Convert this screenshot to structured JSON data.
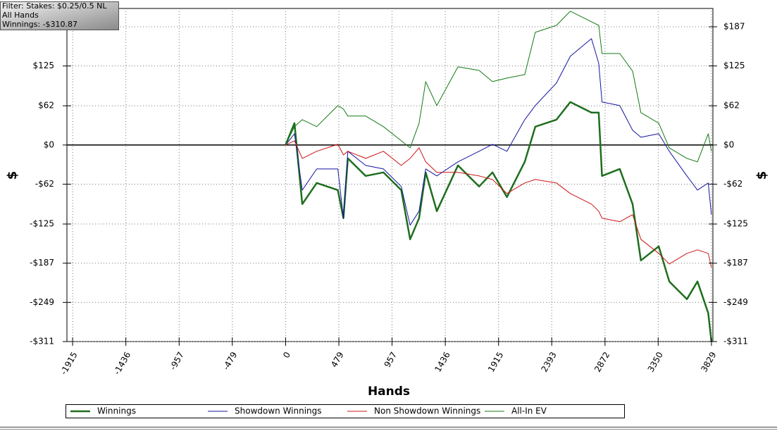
{
  "chart_data": {
    "type": "line",
    "info": [
      "Filter: Stakes: $0.25/0.5 NL",
      "All Hands",
      "Winnings: -$310.87"
    ],
    "xlabel": "Hands",
    "ylabel": "$",
    "y2label": "$",
    "grid": true,
    "legend": "bottom",
    "xlim": [
      -1966,
      3842
    ],
    "xticks": [
      -1915,
      -1436,
      -957,
      -479,
      0,
      479,
      957,
      1436,
      1915,
      2393,
      2872,
      3350,
      3829
    ],
    "ylim": [
      -311,
      216
    ],
    "yticks": [
      {
        "value": -311,
        "label": "-$311"
      },
      {
        "value": -249,
        "label": "-$249"
      },
      {
        "value": -187,
        "label": "-$187"
      },
      {
        "value": -125,
        "label": "-$125"
      },
      {
        "value": -62,
        "label": "-$62"
      },
      {
        "value": 0,
        "label": "$0"
      },
      {
        "value": 62,
        "label": "$62"
      },
      {
        "value": 125,
        "label": "$125"
      },
      {
        "value": 187,
        "label": "$187"
      }
    ],
    "y2lim": [
      -311,
      216
    ],
    "y2ticks": [
      {
        "value": -311,
        "label": "-$311"
      },
      {
        "value": -249,
        "label": "-$249"
      },
      {
        "value": -187,
        "label": "-$187"
      },
      {
        "value": -125,
        "label": "-$125"
      },
      {
        "value": -62,
        "label": "-$62"
      },
      {
        "value": 0,
        "label": "$0"
      },
      {
        "value": 62,
        "label": "$62"
      },
      {
        "value": 125,
        "label": "$125"
      },
      {
        "value": 187,
        "label": "$187"
      }
    ],
    "x": [
      0,
      80,
      150,
      280,
      470,
      520,
      560,
      720,
      880,
      1040,
      1120,
      1200,
      1260,
      1360,
      1550,
      1740,
      1860,
      1990,
      2150,
      2245,
      2435,
      2560,
      2750,
      2815,
      2845,
      3005,
      3120,
      3195,
      3355,
      3450,
      3608,
      3703,
      3800,
      3829
    ],
    "series": [
      {
        "name": "Winnings",
        "color": "#1e6e1e",
        "width": 2.5,
        "values": [
          0,
          34.5,
          -93.5,
          -60.1,
          -71.3,
          -115.8,
          -21.2,
          -49.0,
          -43.4,
          -71.3,
          -149.2,
          -115.8,
          -43.4,
          -104.7,
          -32.3,
          -65.7,
          -43.4,
          -82.4,
          -26.7,
          28.9,
          40.1,
          67.9,
          51.2,
          51.2,
          -49.0,
          -37.9,
          -93.5,
          -182.6,
          -160.4,
          -216.0,
          -243.9,
          -216.0,
          -266.1,
          -310.87
        ]
      },
      {
        "name": "Showdown Winnings",
        "color": "#1414a0",
        "width": 1,
        "values": [
          0,
          17.8,
          -71.3,
          -37.9,
          -37.9,
          -115.8,
          -10.0,
          -32.3,
          -37.9,
          -65.7,
          -126.9,
          -104.7,
          -37.9,
          -49.0,
          -26.7,
          -10.0,
          1.1,
          -10.0,
          40.1,
          62.4,
          98.0,
          140.3,
          168.2,
          129.2,
          67.9,
          62.4,
          23.4,
          12.2,
          17.8,
          -10.0,
          -49.0,
          -71.3,
          -60.1,
          -110.2
        ]
      },
      {
        "name": "Non Showdown Winnings",
        "color": "#cc1414",
        "width": 1,
        "values": [
          0,
          6.7,
          -21.2,
          -10.0,
          1.1,
          -15.6,
          -10.0,
          -21.2,
          -10.0,
          -32.3,
          -21.2,
          -4.5,
          -26.7,
          -43.4,
          -43.4,
          -49.0,
          -54.6,
          -76.8,
          -60.1,
          -54.6,
          -60.1,
          -76.8,
          -93.5,
          -104.7,
          -115.8,
          -121.4,
          -110.2,
          -149.2,
          -171.5,
          -188.2,
          -171.5,
          -165.9,
          -171.5,
          -193.8
        ]
      },
      {
        "name": "All-In EV",
        "color": "#157a15",
        "width": 1,
        "values": [
          0,
          29.0,
          40.1,
          29.0,
          62.4,
          56.8,
          45.7,
          45.7,
          29.0,
          6.7,
          -4.5,
          34.5,
          100.2,
          62.4,
          123.6,
          118.0,
          100.2,
          105.8,
          111.4,
          178.2,
          189.3,
          211.6,
          194.9,
          189.3,
          144.7,
          144.7,
          116.9,
          51.2,
          34.5,
          -4.5,
          -21.2,
          -26.7,
          17.8,
          -10.0
        ]
      }
    ]
  }
}
